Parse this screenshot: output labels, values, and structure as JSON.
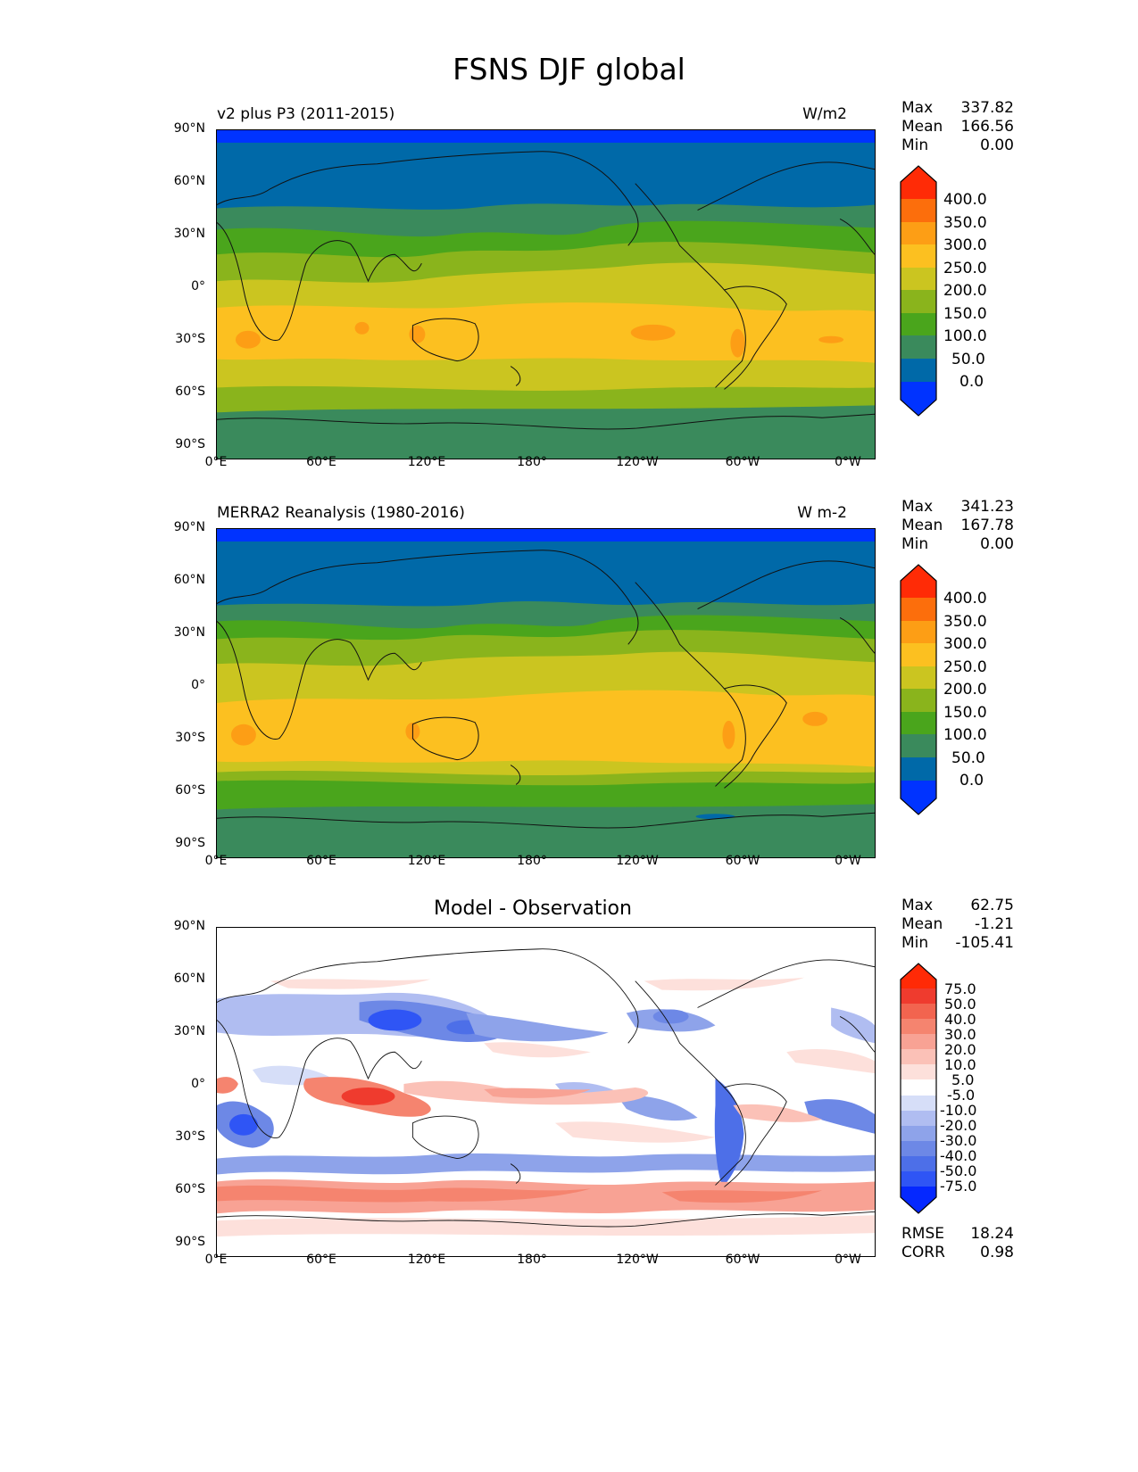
{
  "title": "FSNS DJF global",
  "lat_ticks": [
    "90°N",
    "60°N",
    "30°N",
    "0°",
    "30°S",
    "60°S",
    "90°S"
  ],
  "lon_ticks": [
    "0°E",
    "60°E",
    "120°E",
    "180°",
    "120°W",
    "60°W",
    "0°W"
  ],
  "panels": [
    {
      "left_title": "v2 plus P3 (2011-2015)",
      "right_title": "W/m2",
      "stats": [
        {
          "key": "Max",
          "value": "337.82"
        },
        {
          "key": "Mean",
          "value": "166.56"
        },
        {
          "key": "Min",
          "value": "0.00"
        }
      ],
      "colorbar_labels": [
        "400.0",
        "350.0",
        "300.0",
        "250.0",
        "200.0",
        "150.0",
        "100.0",
        "50.0",
        "0.0"
      ]
    },
    {
      "left_title": "MERRA2 Reanalysis (1980-2016)",
      "right_title": "W m-2",
      "stats": [
        {
          "key": "Max",
          "value": "341.23"
        },
        {
          "key": "Mean",
          "value": "167.78"
        },
        {
          "key": "Min",
          "value": "0.00"
        }
      ],
      "colorbar_labels": [
        "400.0",
        "350.0",
        "300.0",
        "250.0",
        "200.0",
        "150.0",
        "100.0",
        "50.0",
        "0.0"
      ]
    },
    {
      "center_title": "Model - Observation",
      "stats": [
        {
          "key": "Max",
          "value": "62.75"
        },
        {
          "key": "Mean",
          "value": "-1.21"
        },
        {
          "key": "Min",
          "value": "-105.41"
        }
      ],
      "colorbar_labels": [
        "75.0",
        "50.0",
        "40.0",
        "30.0",
        "20.0",
        "10.0",
        "5.0",
        "-5.0",
        "-10.0",
        "-20.0",
        "-30.0",
        "-40.0",
        "-50.0",
        "-75.0"
      ],
      "metrics": [
        {
          "key": "RMSE",
          "value": "18.24"
        },
        {
          "key": "CORR",
          "value": "0.98"
        }
      ]
    }
  ],
  "colors": {
    "abs_levels": [
      "#0033ff",
      "#0069a8",
      "#3a8a5c",
      "#4aa51c",
      "#8ab41c",
      "#cbc520",
      "#fcc020",
      "#fd9e15",
      "#fc6e0c",
      "#ff2b06"
    ],
    "diff_levels": [
      "#0528ff",
      "#2f55f5",
      "#4d6fe8",
      "#6d88e6",
      "#8ea3ea",
      "#b0bdf1",
      "#d6def8",
      "#ffffff",
      "#fde0db",
      "#fbc1b7",
      "#f8a294",
      "#f5846f",
      "#f2644f",
      "#ef3b2e",
      "#ff2a06"
    ]
  }
}
